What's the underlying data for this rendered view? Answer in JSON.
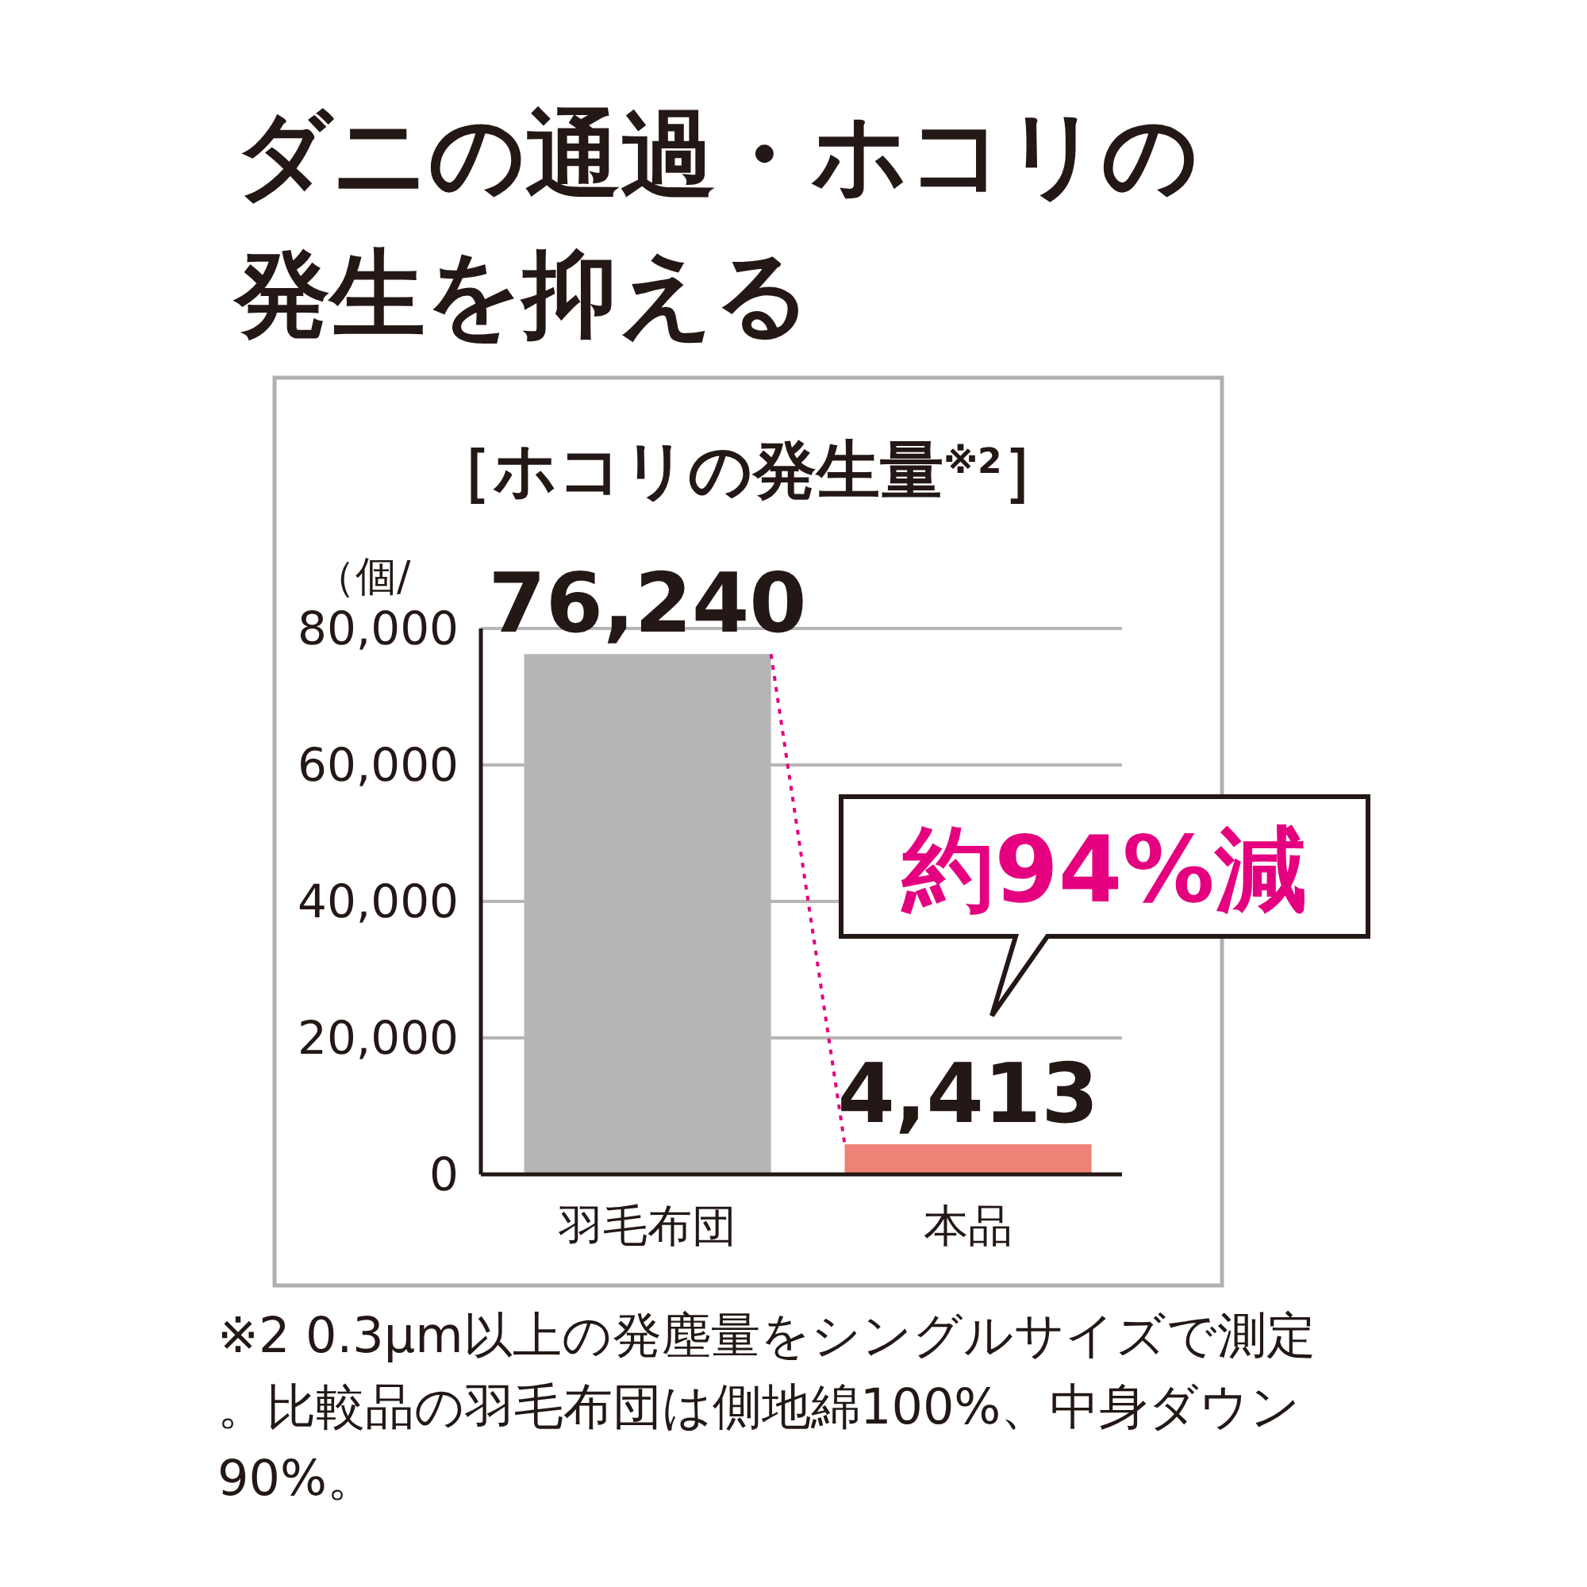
{
  "chart_data": {
    "type": "bar",
    "title": "ダニの通過・ホコリの発生を抑える",
    "subtitle": "［ホコリの発生量$^{※2}$］",
    "ylabel": "（個/",
    "categories": [
      "羽毛布団",
      "本品"
    ],
    "values": [
      76240,
      4413
    ],
    "colors": [
      "#b5b5b5",
      "#ee8277"
    ],
    "value_labels": [
      "76,240",
      "4,413"
    ],
    "ylim": [
      0,
      80000
    ],
    "yticks": [
      {
        "value": 0,
        "label": "0"
      },
      {
        "value": 20000,
        "label": "20,000"
      },
      {
        "value": 40000,
        "label": "40,000"
      },
      {
        "value": 60000,
        "label": "60,000"
      },
      {
        "value": 80000,
        "label": "80,000"
      }
    ],
    "grid": "y",
    "annotations": [
      "約94%減",
      "※2 0.3μm以上の発塵量をシングルサイズで測定。比較品の羽毛布団は側地綿100%、中身ダウン90%。"
    ]
  }
}
